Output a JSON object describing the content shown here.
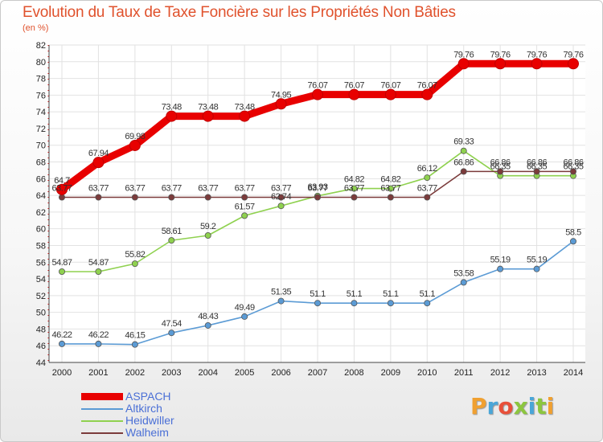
{
  "title": "Evolution du Taux de Taxe Foncière sur les Propriétés Non Bâties",
  "subtitle": "(en %)",
  "logo": {
    "text": "Proxiti",
    "colors": [
      "#f0a030",
      "#4aa6d8",
      "#e8503a",
      "#8cc63f",
      "#4aa6d8",
      "#8cc63f",
      "#f0a030"
    ]
  },
  "chart_data": {
    "type": "line",
    "title": "Evolution du Taux de Taxe Foncière sur les Propriétés Non Bâties",
    "ylabel": "(en %)",
    "x": [
      2000,
      2001,
      2002,
      2003,
      2004,
      2005,
      2006,
      2007,
      2008,
      2009,
      2010,
      2011,
      2012,
      2013,
      2014
    ],
    "ylim": [
      44,
      82
    ],
    "yticks": [
      44,
      46,
      48,
      50,
      52,
      54,
      56,
      58,
      60,
      62,
      64,
      66,
      68,
      70,
      72,
      74,
      76,
      78,
      80,
      82
    ],
    "grid": true,
    "legend_position": "bottom-left",
    "series": [
      {
        "name": "ASPACH",
        "color": "#e80000",
        "values": [
          64.7,
          67.94,
          69.98,
          73.48,
          73.48,
          73.48,
          74.95,
          76.07,
          76.07,
          76.07,
          76.07,
          79.76,
          79.76,
          79.76,
          79.76
        ],
        "labels": [
          "64.7",
          "67.94",
          "69.98",
          "73.48",
          "73.48",
          "73.48",
          "74.95",
          "76.07",
          "76.07",
          "76.07",
          "76.07",
          "79.76",
          "79.76",
          "79.76",
          "79.76"
        ]
      },
      {
        "name": "Altkirch",
        "color": "#5b9bd5",
        "values": [
          46.22,
          46.22,
          46.15,
          47.54,
          48.43,
          49.49,
          51.35,
          51.1,
          51.1,
          51.1,
          51.1,
          53.58,
          55.19,
          55.19,
          58.5
        ],
        "labels": [
          "46.22",
          "46.22",
          "46.15",
          "47.54",
          "48.43",
          "49.49",
          "51.35",
          "51.1",
          "51.1",
          "51.1",
          "51.1",
          "53.58",
          "55.19",
          "55.19",
          "58.5"
        ]
      },
      {
        "name": "Heidwiller",
        "color": "#8fd14f",
        "values": [
          54.87,
          54.87,
          55.82,
          58.61,
          59.2,
          61.57,
          62.74,
          63.93,
          64.82,
          64.82,
          66.12,
          69.33,
          66.35,
          66.35,
          66.35
        ],
        "labels": [
          "54.87",
          "54.87",
          "55.82",
          "58.61",
          "59.2",
          "61.57",
          "62.74",
          "63.93",
          "64.82",
          "64.82",
          "66.12",
          "69.33",
          "66.35",
          "66.35",
          "66.35"
        ]
      },
      {
        "name": "Walheim",
        "color": "#7b3b3b",
        "values": [
          63.77,
          63.77,
          63.77,
          63.77,
          63.77,
          63.77,
          63.77,
          63.77,
          63.77,
          63.77,
          63.77,
          66.86,
          66.86,
          66.86,
          66.86
        ],
        "labels": [
          "63.77",
          "63.77",
          "63.77",
          "63.77",
          "63.77",
          "63.77",
          "63.77",
          "63.77",
          "63.77",
          "63.77",
          "63.77",
          "66.86",
          "66.86",
          "66.86",
          "66.86"
        ]
      }
    ]
  }
}
